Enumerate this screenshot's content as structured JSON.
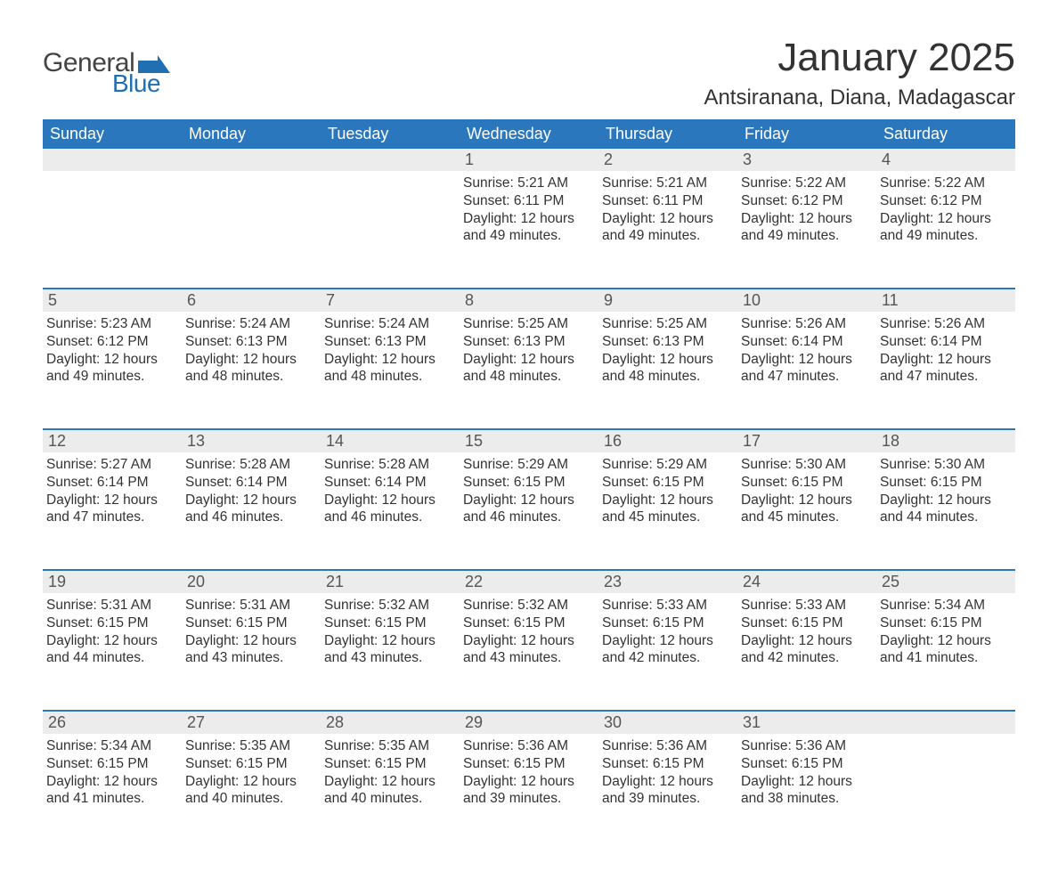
{
  "logo": {
    "text_general": "General",
    "text_blue": "Blue",
    "shape_color": "#1f6fb2",
    "text_general_color": "#444444",
    "text_blue_color": "#1f6fb2"
  },
  "header": {
    "month_title": "January 2025",
    "location": "Antsiranana, Diana, Madagascar",
    "title_fontsize": 44,
    "location_fontsize": 24,
    "title_color": "#333333"
  },
  "styling": {
    "header_bg": "#2a77bd",
    "header_text_color": "#ffffff",
    "daynum_bg": "#ececec",
    "daynum_color": "#555555",
    "body_text_color": "#333333",
    "week_border_color": "#2a77bd",
    "background": "#ffffff",
    "cell_fontsize": 15.5,
    "header_fontsize": 18,
    "daynum_fontsize": 18
  },
  "day_headers": [
    "Sunday",
    "Monday",
    "Tuesday",
    "Wednesday",
    "Thursday",
    "Friday",
    "Saturday"
  ],
  "weeks": [
    [
      {
        "day": "",
        "sunrise": "",
        "sunset": "",
        "daylight": ""
      },
      {
        "day": "",
        "sunrise": "",
        "sunset": "",
        "daylight": ""
      },
      {
        "day": "",
        "sunrise": "",
        "sunset": "",
        "daylight": ""
      },
      {
        "day": "1",
        "sunrise": "Sunrise: 5:21 AM",
        "sunset": "Sunset: 6:11 PM",
        "daylight": "Daylight: 12 hours and 49 minutes."
      },
      {
        "day": "2",
        "sunrise": "Sunrise: 5:21 AM",
        "sunset": "Sunset: 6:11 PM",
        "daylight": "Daylight: 12 hours and 49 minutes."
      },
      {
        "day": "3",
        "sunrise": "Sunrise: 5:22 AM",
        "sunset": "Sunset: 6:12 PM",
        "daylight": "Daylight: 12 hours and 49 minutes."
      },
      {
        "day": "4",
        "sunrise": "Sunrise: 5:22 AM",
        "sunset": "Sunset: 6:12 PM",
        "daylight": "Daylight: 12 hours and 49 minutes."
      }
    ],
    [
      {
        "day": "5",
        "sunrise": "Sunrise: 5:23 AM",
        "sunset": "Sunset: 6:12 PM",
        "daylight": "Daylight: 12 hours and 49 minutes."
      },
      {
        "day": "6",
        "sunrise": "Sunrise: 5:24 AM",
        "sunset": "Sunset: 6:13 PM",
        "daylight": "Daylight: 12 hours and 48 minutes."
      },
      {
        "day": "7",
        "sunrise": "Sunrise: 5:24 AM",
        "sunset": "Sunset: 6:13 PM",
        "daylight": "Daylight: 12 hours and 48 minutes."
      },
      {
        "day": "8",
        "sunrise": "Sunrise: 5:25 AM",
        "sunset": "Sunset: 6:13 PM",
        "daylight": "Daylight: 12 hours and 48 minutes."
      },
      {
        "day": "9",
        "sunrise": "Sunrise: 5:25 AM",
        "sunset": "Sunset: 6:13 PM",
        "daylight": "Daylight: 12 hours and 48 minutes."
      },
      {
        "day": "10",
        "sunrise": "Sunrise: 5:26 AM",
        "sunset": "Sunset: 6:14 PM",
        "daylight": "Daylight: 12 hours and 47 minutes."
      },
      {
        "day": "11",
        "sunrise": "Sunrise: 5:26 AM",
        "sunset": "Sunset: 6:14 PM",
        "daylight": "Daylight: 12 hours and 47 minutes."
      }
    ],
    [
      {
        "day": "12",
        "sunrise": "Sunrise: 5:27 AM",
        "sunset": "Sunset: 6:14 PM",
        "daylight": "Daylight: 12 hours and 47 minutes."
      },
      {
        "day": "13",
        "sunrise": "Sunrise: 5:28 AM",
        "sunset": "Sunset: 6:14 PM",
        "daylight": "Daylight: 12 hours and 46 minutes."
      },
      {
        "day": "14",
        "sunrise": "Sunrise: 5:28 AM",
        "sunset": "Sunset: 6:14 PM",
        "daylight": "Daylight: 12 hours and 46 minutes."
      },
      {
        "day": "15",
        "sunrise": "Sunrise: 5:29 AM",
        "sunset": "Sunset: 6:15 PM",
        "daylight": "Daylight: 12 hours and 46 minutes."
      },
      {
        "day": "16",
        "sunrise": "Sunrise: 5:29 AM",
        "sunset": "Sunset: 6:15 PM",
        "daylight": "Daylight: 12 hours and 45 minutes."
      },
      {
        "day": "17",
        "sunrise": "Sunrise: 5:30 AM",
        "sunset": "Sunset: 6:15 PM",
        "daylight": "Daylight: 12 hours and 45 minutes."
      },
      {
        "day": "18",
        "sunrise": "Sunrise: 5:30 AM",
        "sunset": "Sunset: 6:15 PM",
        "daylight": "Daylight: 12 hours and 44 minutes."
      }
    ],
    [
      {
        "day": "19",
        "sunrise": "Sunrise: 5:31 AM",
        "sunset": "Sunset: 6:15 PM",
        "daylight": "Daylight: 12 hours and 44 minutes."
      },
      {
        "day": "20",
        "sunrise": "Sunrise: 5:31 AM",
        "sunset": "Sunset: 6:15 PM",
        "daylight": "Daylight: 12 hours and 43 minutes."
      },
      {
        "day": "21",
        "sunrise": "Sunrise: 5:32 AM",
        "sunset": "Sunset: 6:15 PM",
        "daylight": "Daylight: 12 hours and 43 minutes."
      },
      {
        "day": "22",
        "sunrise": "Sunrise: 5:32 AM",
        "sunset": "Sunset: 6:15 PM",
        "daylight": "Daylight: 12 hours and 43 minutes."
      },
      {
        "day": "23",
        "sunrise": "Sunrise: 5:33 AM",
        "sunset": "Sunset: 6:15 PM",
        "daylight": "Daylight: 12 hours and 42 minutes."
      },
      {
        "day": "24",
        "sunrise": "Sunrise: 5:33 AM",
        "sunset": "Sunset: 6:15 PM",
        "daylight": "Daylight: 12 hours and 42 minutes."
      },
      {
        "day": "25",
        "sunrise": "Sunrise: 5:34 AM",
        "sunset": "Sunset: 6:15 PM",
        "daylight": "Daylight: 12 hours and 41 minutes."
      }
    ],
    [
      {
        "day": "26",
        "sunrise": "Sunrise: 5:34 AM",
        "sunset": "Sunset: 6:15 PM",
        "daylight": "Daylight: 12 hours and 41 minutes."
      },
      {
        "day": "27",
        "sunrise": "Sunrise: 5:35 AM",
        "sunset": "Sunset: 6:15 PM",
        "daylight": "Daylight: 12 hours and 40 minutes."
      },
      {
        "day": "28",
        "sunrise": "Sunrise: 5:35 AM",
        "sunset": "Sunset: 6:15 PM",
        "daylight": "Daylight: 12 hours and 40 minutes."
      },
      {
        "day": "29",
        "sunrise": "Sunrise: 5:36 AM",
        "sunset": "Sunset: 6:15 PM",
        "daylight": "Daylight: 12 hours and 39 minutes."
      },
      {
        "day": "30",
        "sunrise": "Sunrise: 5:36 AM",
        "sunset": "Sunset: 6:15 PM",
        "daylight": "Daylight: 12 hours and 39 minutes."
      },
      {
        "day": "31",
        "sunrise": "Sunrise: 5:36 AM",
        "sunset": "Sunset: 6:15 PM",
        "daylight": "Daylight: 12 hours and 38 minutes."
      },
      {
        "day": "",
        "sunrise": "",
        "sunset": "",
        "daylight": ""
      }
    ]
  ]
}
